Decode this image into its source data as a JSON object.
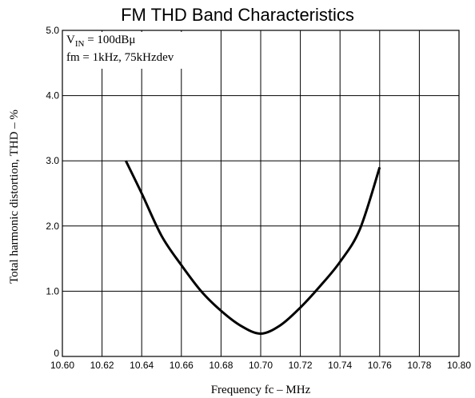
{
  "chart_data": {
    "type": "line",
    "title": "FM THD Band Characteristics",
    "xlabel": "Frequency fc  –  MHz",
    "ylabel": "Total harmonic distortion, THD  –  %",
    "xlim": [
      10.6,
      10.8
    ],
    "ylim": [
      0,
      5.0
    ],
    "x_ticks": [
      "10.60",
      "10.62",
      "10.64",
      "10.66",
      "10.68",
      "10.70",
      "10.72",
      "10.74",
      "10.76",
      "10.78",
      "10.80"
    ],
    "y_ticks": [
      "0",
      "1.0",
      "2.0",
      "3.0",
      "4.0",
      "5.0"
    ],
    "grid": true,
    "annotations": {
      "line1_main": "V",
      "line1_sub": "IN",
      "line1_rest": " = 100dBμ",
      "line2": "fm = 1kHz, 75kHzdev"
    },
    "series": [
      {
        "x": [
          10.632,
          10.64,
          10.65,
          10.66,
          10.67,
          10.68,
          10.69,
          10.7,
          10.71,
          10.72,
          10.73,
          10.74,
          10.75,
          10.76
        ],
        "y": [
          3.0,
          2.5,
          1.85,
          1.4,
          1.0,
          0.7,
          0.47,
          0.35,
          0.48,
          0.75,
          1.08,
          1.45,
          1.95,
          2.9
        ]
      }
    ]
  }
}
